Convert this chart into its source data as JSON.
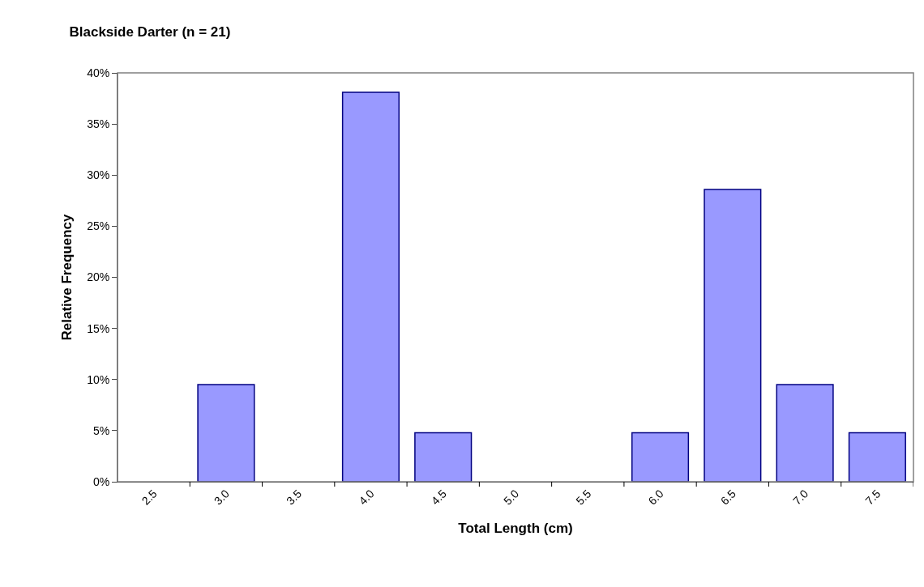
{
  "chart_data": {
    "type": "bar",
    "title": "Blackside Darter (n = 21)",
    "xlabel": "Total Length (cm)",
    "ylabel": "Relative Frequency",
    "categories": [
      "2.5",
      "3.0",
      "3.5",
      "4.0",
      "4.5",
      "5.0",
      "5.5",
      "6.0",
      "6.5",
      "7.0",
      "7.5"
    ],
    "values": [
      0,
      9.5,
      0,
      38.1,
      4.8,
      0,
      0,
      4.8,
      28.6,
      9.5,
      4.8
    ],
    "color": "#9999ff",
    "ylim": [
      0,
      40
    ],
    "yticks": [
      {
        "value": 0,
        "label": "0%"
      },
      {
        "value": 5,
        "label": "5%"
      },
      {
        "value": 10,
        "label": "10%"
      },
      {
        "value": 15,
        "label": "15%"
      },
      {
        "value": 20,
        "label": "20%"
      },
      {
        "value": 25,
        "label": "25%"
      },
      {
        "value": 30,
        "label": "30%"
      },
      {
        "value": 35,
        "label": "35%"
      },
      {
        "value": 40,
        "label": "40%"
      }
    ],
    "grid": false
  }
}
